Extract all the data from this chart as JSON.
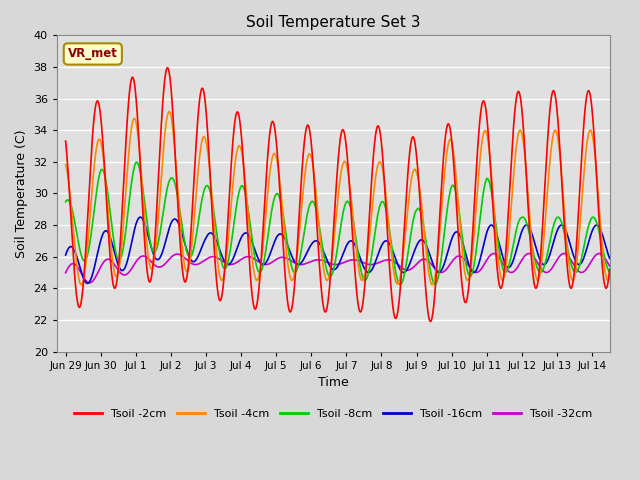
{
  "title": "Soil Temperature Set 3",
  "xlabel": "Time",
  "ylabel": "Soil Temperature (C)",
  "ylim": [
    20,
    40
  ],
  "yticks": [
    20,
    22,
    24,
    26,
    28,
    30,
    32,
    34,
    36,
    38,
    40
  ],
  "xtick_labels": [
    "Jun 29",
    "Jun 30",
    "Jul 1",
    "Jul 2",
    "Jul 3",
    "Jul 4",
    "Jul 5",
    "Jul 6",
    "Jul 7",
    "Jul 8",
    "Jul 9",
    "Jul 10",
    "Jul 11",
    "Jul 12",
    "Jul 13",
    "Jul 14"
  ],
  "xtick_positions": [
    0,
    1,
    2,
    3,
    4,
    5,
    6,
    7,
    8,
    9,
    10,
    11,
    12,
    13,
    14,
    15
  ],
  "annotation_text": "VR_met",
  "background_color": "#e0e0e0",
  "grid_color": "#ffffff",
  "fig_facecolor": "#d8d8d8",
  "lines": {
    "Tsoil -2cm": {
      "color": "#ff0000",
      "lw": 1.2
    },
    "Tsoil -4cm": {
      "color": "#ff8800",
      "lw": 1.2
    },
    "Tsoil -8cm": {
      "color": "#00cc00",
      "lw": 1.2
    },
    "Tsoil -16cm": {
      "color": "#0000cc",
      "lw": 1.2
    },
    "Tsoil -32cm": {
      "color": "#cc00cc",
      "lw": 1.2
    }
  },
  "peaks_2cm": [
    34.5,
    36.0,
    37.5,
    38.0,
    36.5,
    35.0,
    34.5,
    34.3,
    34.0,
    34.3,
    33.5,
    34.5,
    36.0,
    36.5
  ],
  "valleys_2cm": [
    22.0,
    24.0,
    24.0,
    25.0,
    23.5,
    22.8,
    22.5,
    22.5,
    22.5,
    22.5,
    21.5,
    22.5,
    24.0,
    24.0
  ],
  "peaks_4cm": [
    32.0,
    33.5,
    34.8,
    35.2,
    33.5,
    33.0,
    32.5,
    32.5,
    32.0,
    32.0,
    31.5,
    33.5,
    34.0,
    34.0
  ],
  "valleys_4cm": [
    24.0,
    24.5,
    25.0,
    25.5,
    24.5,
    24.5,
    24.5,
    24.5,
    24.5,
    24.5,
    24.0,
    24.5,
    24.5,
    24.5
  ],
  "peaks_8cm": [
    29.5,
    31.5,
    32.0,
    31.0,
    30.5,
    30.5,
    30.0,
    29.5,
    29.5,
    29.5,
    29.0,
    30.5,
    31.0,
    28.5
  ],
  "valleys_8cm": [
    26.0,
    25.5,
    26.0,
    26.5,
    25.5,
    25.0,
    25.0,
    25.0,
    24.5,
    24.5,
    24.0,
    24.5,
    25.0,
    25.0
  ],
  "peaks_16cm": [
    26.5,
    27.5,
    28.5,
    28.5,
    27.5,
    27.5,
    27.5,
    27.0,
    27.0,
    27.0,
    27.0,
    27.5,
    28.0,
    28.0
  ],
  "valleys_16cm": [
    24.0,
    24.5,
    25.5,
    26.0,
    25.5,
    25.5,
    25.5,
    25.5,
    25.0,
    25.0,
    25.0,
    25.0,
    25.0,
    25.5
  ],
  "peaks_32cm": [
    25.5,
    25.8,
    26.0,
    26.2,
    26.0,
    26.0,
    26.0,
    25.8,
    25.8,
    25.8,
    25.8,
    26.0,
    26.2,
    26.2
  ],
  "valleys_32cm": [
    24.0,
    24.5,
    25.0,
    25.5,
    25.5,
    25.5,
    25.5,
    25.5,
    25.5,
    25.5,
    25.0,
    25.0,
    25.0,
    25.0
  ]
}
